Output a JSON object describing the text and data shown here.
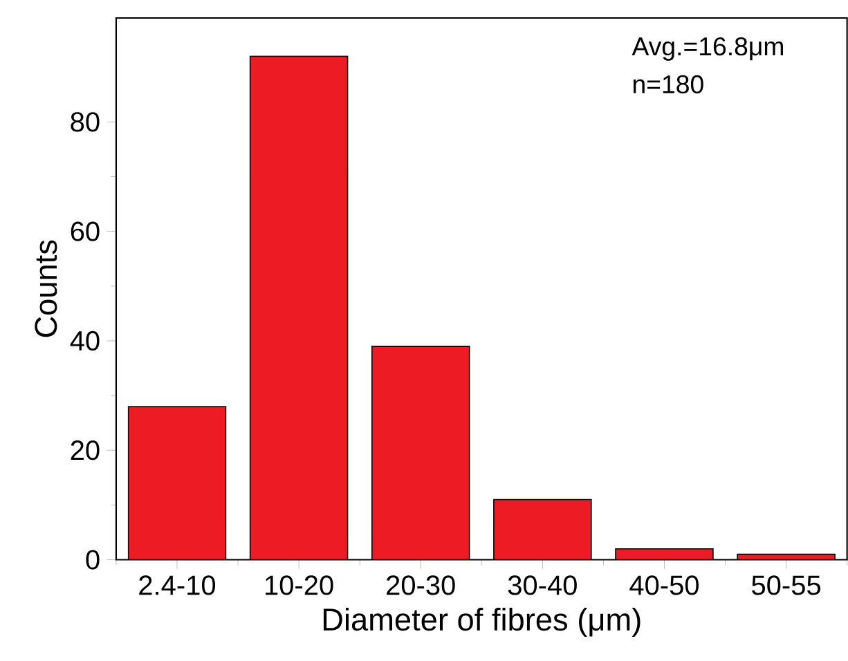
{
  "chart_data": {
    "type": "bar",
    "xlabel": "Diameter of fibres (μm)",
    "ylabel": "Counts",
    "categories": [
      "2.4-10",
      "10-20",
      "20-30",
      "30-40",
      "40-50",
      "50-55"
    ],
    "values": [
      28,
      92,
      39,
      11,
      2,
      1
    ],
    "color": "#ed1c24",
    "ylim": [
      0,
      99
    ],
    "yticks": [
      0,
      20,
      40,
      60,
      80
    ],
    "annotations": [
      "Avg.=16.8μm",
      "n=180"
    ]
  }
}
